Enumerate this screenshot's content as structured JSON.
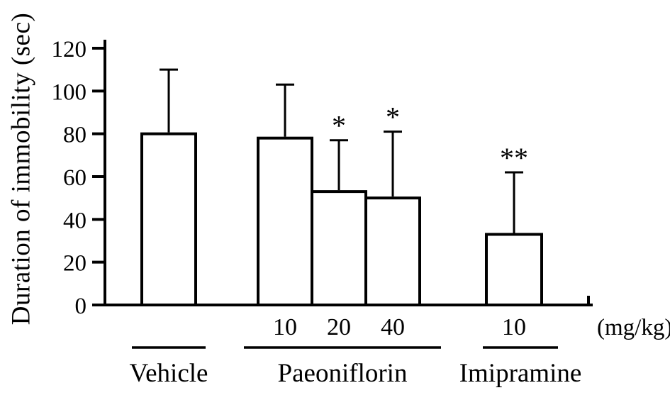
{
  "figure": {
    "background": "#ffffff",
    "ink": "#000000"
  },
  "chart_data": {
    "type": "bar",
    "title": "",
    "ylabel": "Duration of immobility (sec)",
    "xlabel": "",
    "unit_label": "(mg/kg)",
    "ylim": [
      0,
      120
    ],
    "yticks": [
      0,
      20,
      40,
      60,
      80,
      100,
      120
    ],
    "grid": false,
    "legend": null,
    "bar_fill": "#ffffff",
    "bars": [
      {
        "group": "Vehicle",
        "dose": "",
        "value": 80,
        "error_top": 110,
        "sig": ""
      },
      {
        "group": "Paeoniflorin",
        "dose": "10",
        "value": 78,
        "error_top": 103,
        "sig": ""
      },
      {
        "group": "Paeoniflorin",
        "dose": "20",
        "value": 53,
        "error_top": 77,
        "sig": "*"
      },
      {
        "group": "Paeoniflorin",
        "dose": "40",
        "value": 50,
        "error_top": 81,
        "sig": "*"
      },
      {
        "group": "Imipramine",
        "dose": "10",
        "value": 33,
        "error_top": 62,
        "sig": "**"
      }
    ],
    "groups": [
      {
        "label": "Vehicle"
      },
      {
        "label": "Paeoniflorin"
      },
      {
        "label": "Imipramine"
      }
    ]
  }
}
